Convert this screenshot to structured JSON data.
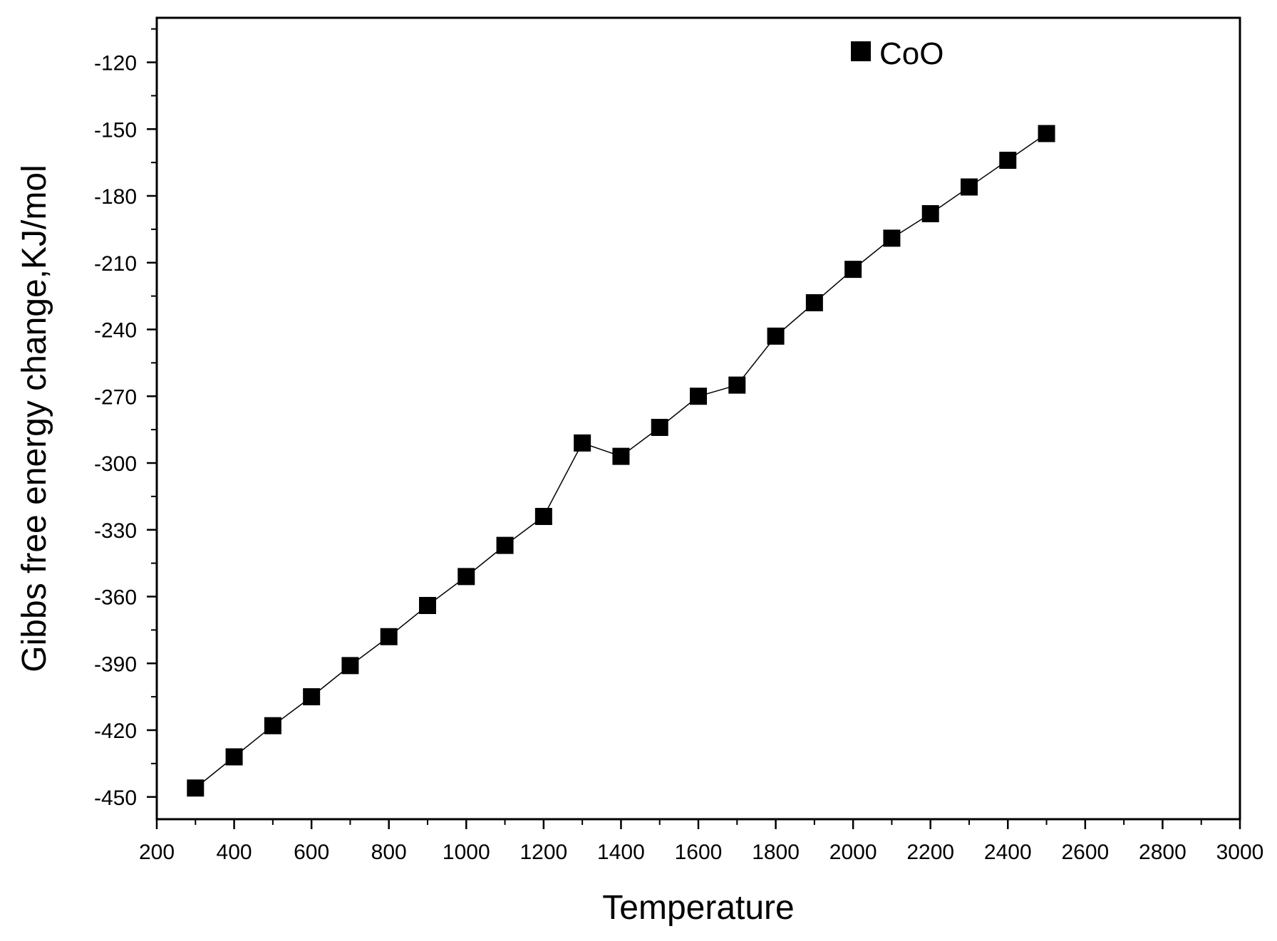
{
  "chart_data": {
    "type": "line",
    "title": "",
    "xlabel": "Temperature",
    "ylabel": "Gibbs free energy change,KJ/mol",
    "xlim": [
      200,
      3000
    ],
    "ylim": [
      -460,
      -100
    ],
    "x_major_ticks": [
      200,
      400,
      600,
      800,
      1000,
      1200,
      1400,
      1600,
      1800,
      2000,
      2200,
      2400,
      2600,
      2800,
      3000
    ],
    "x_tick_labels": [
      "200",
      "400",
      "600",
      "800",
      "1000",
      "1200",
      "1400",
      "1600",
      "1800",
      "2000",
      "2200",
      "2400",
      "2600",
      "2800",
      "3000"
    ],
    "y_major_ticks": [
      -450,
      -420,
      -390,
      -360,
      -330,
      -300,
      -270,
      -240,
      -210,
      -180,
      -150,
      -120
    ],
    "y_tick_labels": [
      "-450",
      "-420",
      "-390",
      "-360",
      "-330",
      "-300",
      "-270",
      "-240",
      "-210",
      "-180",
      "-150",
      "-120"
    ],
    "grid": false,
    "legend_position": "top-right",
    "series": [
      {
        "name": "CoO",
        "marker": "square",
        "color": "#000000",
        "x": [
          300,
          400,
          500,
          600,
          700,
          800,
          900,
          1000,
          1100,
          1200,
          1300,
          1400,
          1500,
          1600,
          1700,
          1800,
          1900,
          2000,
          2100,
          2200,
          2300,
          2400,
          2500
        ],
        "values": [
          -446,
          -432,
          -418,
          -405,
          -391,
          -378,
          -364,
          -351,
          -337,
          -324,
          -291,
          -297,
          -284,
          -270,
          -265,
          -243,
          -228,
          -213,
          -199,
          -188,
          -176,
          -164,
          -152
        ]
      }
    ]
  }
}
